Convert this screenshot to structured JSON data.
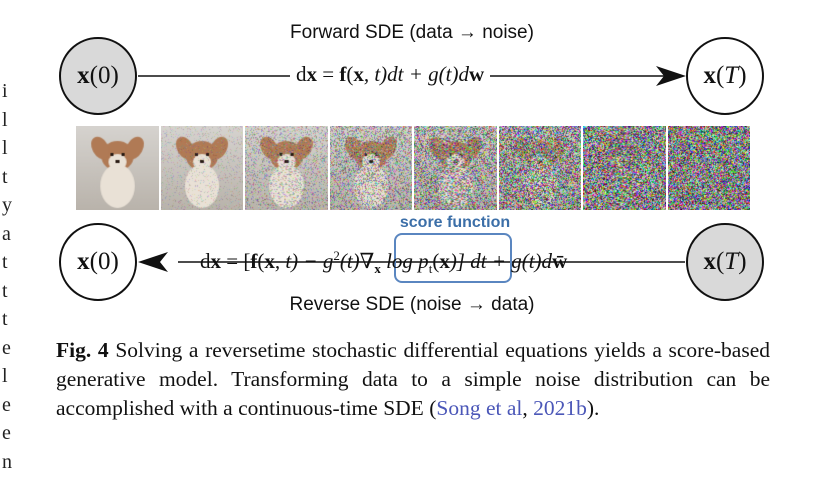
{
  "margin_letters": [
    "i",
    "l",
    "l",
    "t",
    "y",
    "a",
    "t",
    "t",
    "t",
    "e",
    "l",
    "e",
    "e",
    "n"
  ],
  "figure": {
    "top_label": "Forward SDE (data → noise)",
    "bottom_label": "Reverse SDE (noise → data)",
    "score_label": "score function",
    "nodes": {
      "x0_bold": "x",
      "x0_arg": "(0)",
      "xT_bold": "x",
      "xT_arg": "T"
    },
    "forward_eq": {
      "part1": "d",
      "part2": " = ",
      "part3": "(",
      "part4": ", t)dt + g(t)d"
    },
    "reverse_eq": {
      "text_a": "d",
      "text_b": " = [",
      "text_c": "(",
      "text_d": ", t) − g",
      "sup": "2",
      "text_e": "(t)",
      "nabla": "∇",
      "nabla_sub": "x",
      "text_f": " log p",
      "sub_t": "t",
      "text_g": "(",
      "text_h": ")] dt + g(t)d"
    },
    "noise_levels": [
      0.0,
      0.2,
      0.38,
      0.55,
      0.7,
      0.82,
      0.92,
      1.0
    ],
    "colors": {
      "node_gray": "#d9d9d9",
      "score_blue": "#5a86c0",
      "score_text": "#3c6fa8",
      "fur": "#b07a55"
    }
  },
  "caption": {
    "label": "Fig. 4",
    "text": " Solving a reversetime stochastic differential equations yields a score-based generative model. Transforming data to a simple noise distribution can be accomplished with a continuous-time SDE (",
    "cite_author": "Song et al",
    "cite_sep": ", ",
    "cite_year": "2021b",
    "text_end": ")."
  }
}
